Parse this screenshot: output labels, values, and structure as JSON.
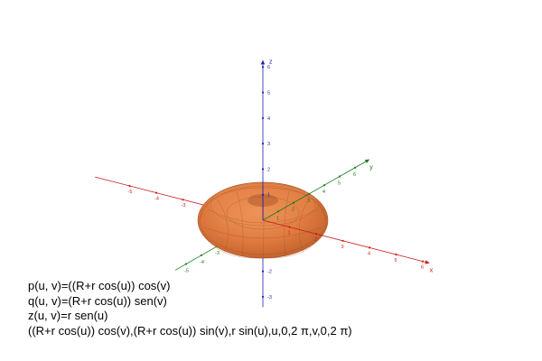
{
  "view": {
    "colors": {
      "x_axis": "#cc1a1a",
      "y_axis": "#1a7a1a",
      "z_axis": "#1f1fb3",
      "surface": "#df7a3f",
      "surface_shade": "#b75a28",
      "mesh": "#8a4a22"
    },
    "axes": {
      "x": {
        "name": "x",
        "tick_labels": [
          "-5",
          "-4",
          "-3",
          "-2",
          "-1",
          "1",
          "2",
          "3",
          "4",
          "5",
          "6"
        ]
      },
      "y": {
        "name": "y",
        "tick_labels": [
          "-5",
          "-4",
          "-3",
          "-2",
          "-1",
          "1",
          "2",
          "3",
          "4",
          "5",
          "6"
        ]
      },
      "z": {
        "name": "z",
        "tick_labels": [
          "6",
          "5",
          "4",
          "3",
          "2",
          "1",
          "-1",
          "-2",
          "-3"
        ]
      }
    },
    "surface_name": "torus"
  },
  "formulas": [
    "p(u, v)=((R+r cos(u)) cos(v)",
    "q(u, v)=(R+r cos(u)) sen(v)",
    "z(u, v)=r sen(u)",
    "((R+r cos(u)) cos(v),(R+r cos(u)) sin(v),r sin(u),u,0,2 π,v,0,2 π)"
  ]
}
